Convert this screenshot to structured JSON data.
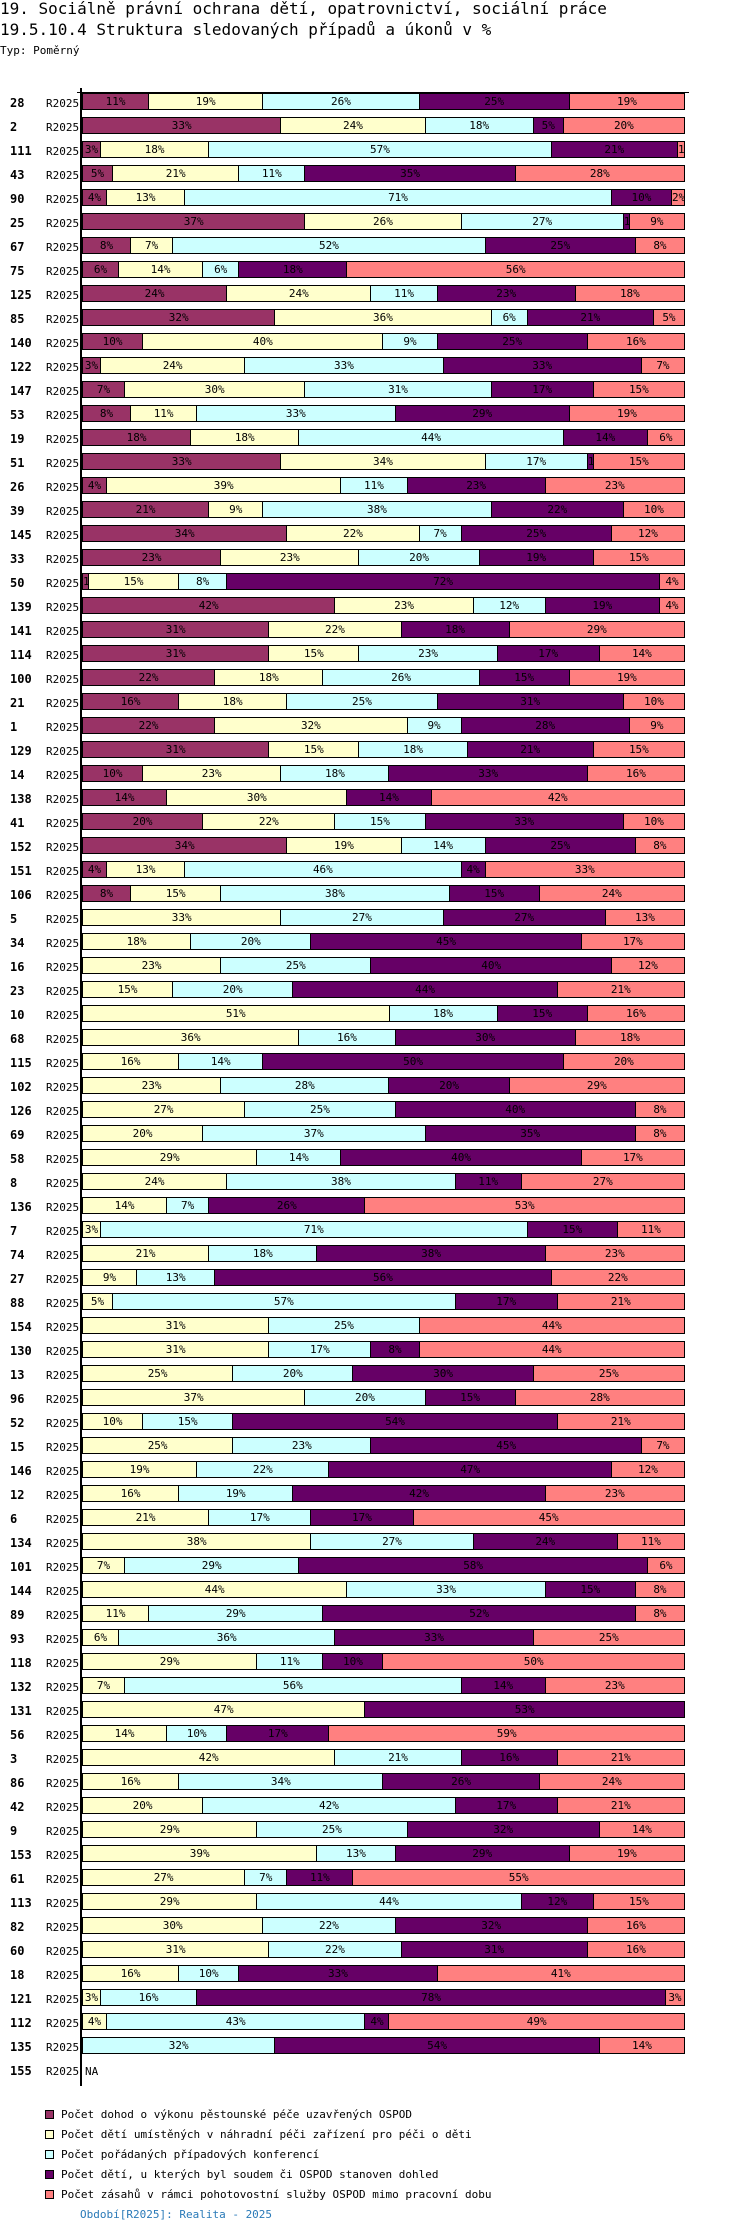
{
  "header": {
    "title": "19. Sociálně právní ochrana dětí, opatrovnictví, sociální práce",
    "subtitle": "19.5.10.4 Struktura sledovaných případů a úkonů v %",
    "type_label": "Typ: Poměrný"
  },
  "footer": "Období[R2025]: Realita - 2025",
  "chart_data": {
    "type": "bar",
    "orientation": "horizontal-stacked-percent",
    "title": "19.5.10.4 Struktura sledovaných případů a úkonů v %",
    "period": "R2025",
    "na_label": "NA",
    "xlim": [
      0,
      100
    ],
    "legend_placement": "bottom",
    "series": [
      {
        "name": "Počet dohod o výkonu pěstounské péče uzavřených OSPOD",
        "color": "#993366"
      },
      {
        "name": "Počet dětí umístěných v náhradní péči zařízení pro péči o děti",
        "color": "#FFFFCC"
      },
      {
        "name": "Počet pořádaných případových konferencí",
        "color": "#CCFFFF"
      },
      {
        "name": "Počet dětí, u kterých byl soudem či OSPOD stanoven dohled",
        "color": "#660066"
      },
      {
        "name": "Počet zásahů v rámci pohotovostní služby OSPOD mimo pracovní dobu",
        "color": "#FF8080"
      }
    ],
    "rows": [
      {
        "id": "28",
        "values": [
          11,
          19,
          26,
          25,
          19
        ]
      },
      {
        "id": "2",
        "values": [
          33,
          24,
          18,
          5,
          20
        ]
      },
      {
        "id": "111",
        "values": [
          3,
          18,
          57,
          21,
          1
        ]
      },
      {
        "id": "43",
        "values": [
          5,
          21,
          11,
          35,
          28
        ]
      },
      {
        "id": "90",
        "values": [
          4,
          13,
          71,
          10,
          2
        ]
      },
      {
        "id": "25",
        "values": [
          37,
          26,
          27,
          1,
          9
        ]
      },
      {
        "id": "67",
        "values": [
          8,
          7,
          52,
          25,
          8
        ]
      },
      {
        "id": "75",
        "values": [
          6,
          14,
          6,
          18,
          56
        ]
      },
      {
        "id": "125",
        "values": [
          24,
          24,
          11,
          23,
          18
        ]
      },
      {
        "id": "85",
        "values": [
          32,
          36,
          6,
          21,
          5
        ]
      },
      {
        "id": "140",
        "values": [
          10,
          40,
          9,
          25,
          16
        ]
      },
      {
        "id": "122",
        "values": [
          3,
          24,
          33,
          33,
          7
        ]
      },
      {
        "id": "147",
        "values": [
          7,
          30,
          31,
          17,
          15
        ]
      },
      {
        "id": "53",
        "values": [
          8,
          11,
          33,
          29,
          19
        ]
      },
      {
        "id": "19",
        "values": [
          18,
          18,
          44,
          14,
          6
        ]
      },
      {
        "id": "51",
        "values": [
          33,
          34,
          17,
          1,
          15
        ]
      },
      {
        "id": "26",
        "values": [
          4,
          39,
          11,
          23,
          23
        ]
      },
      {
        "id": "39",
        "values": [
          21,
          9,
          38,
          22,
          10
        ]
      },
      {
        "id": "145",
        "values": [
          34,
          22,
          7,
          25,
          12
        ]
      },
      {
        "id": "33",
        "values": [
          23,
          23,
          20,
          19,
          15
        ]
      },
      {
        "id": "50",
        "values": [
          1,
          15,
          8,
          72,
          4
        ]
      },
      {
        "id": "139",
        "values": [
          42,
          23,
          12,
          19,
          4
        ]
      },
      {
        "id": "141",
        "values": [
          31,
          22,
          0,
          18,
          29
        ]
      },
      {
        "id": "114",
        "values": [
          31,
          15,
          23,
          17,
          14
        ]
      },
      {
        "id": "100",
        "values": [
          22,
          18,
          26,
          15,
          19
        ]
      },
      {
        "id": "21",
        "values": [
          16,
          18,
          25,
          31,
          10
        ]
      },
      {
        "id": "1",
        "values": [
          22,
          32,
          9,
          28,
          9
        ]
      },
      {
        "id": "129",
        "values": [
          31,
          15,
          18,
          21,
          15
        ]
      },
      {
        "id": "14",
        "values": [
          10,
          23,
          18,
          33,
          16
        ]
      },
      {
        "id": "138",
        "values": [
          14,
          30,
          0,
          14,
          42
        ]
      },
      {
        "id": "41",
        "values": [
          20,
          22,
          15,
          33,
          10
        ]
      },
      {
        "id": "152",
        "values": [
          34,
          19,
          14,
          25,
          8
        ]
      },
      {
        "id": "151",
        "values": [
          4,
          13,
          46,
          4,
          33
        ]
      },
      {
        "id": "106",
        "values": [
          8,
          15,
          38,
          15,
          24
        ]
      },
      {
        "id": "5",
        "values": [
          0,
          33,
          27,
          27,
          13
        ]
      },
      {
        "id": "34",
        "values": [
          0,
          18,
          20,
          45,
          17
        ]
      },
      {
        "id": "16",
        "values": [
          0,
          23,
          25,
          40,
          12
        ]
      },
      {
        "id": "23",
        "values": [
          0,
          15,
          20,
          44,
          21
        ]
      },
      {
        "id": "10",
        "values": [
          0,
          51,
          18,
          15,
          16
        ]
      },
      {
        "id": "68",
        "values": [
          0,
          36,
          16,
          30,
          18
        ]
      },
      {
        "id": "115",
        "values": [
          0,
          16,
          14,
          50,
          20
        ]
      },
      {
        "id": "102",
        "values": [
          0,
          23,
          28,
          20,
          29
        ]
      },
      {
        "id": "126",
        "values": [
          0,
          27,
          25,
          40,
          8
        ]
      },
      {
        "id": "69",
        "values": [
          0,
          20,
          37,
          35,
          8
        ]
      },
      {
        "id": "58",
        "values": [
          0,
          29,
          14,
          40,
          17
        ]
      },
      {
        "id": "8",
        "values": [
          0,
          24,
          38,
          11,
          27
        ]
      },
      {
        "id": "136",
        "values": [
          0,
          14,
          7,
          26,
          53
        ]
      },
      {
        "id": "7",
        "values": [
          0,
          3,
          71,
          15,
          11
        ]
      },
      {
        "id": "74",
        "values": [
          0,
          21,
          18,
          38,
          23
        ]
      },
      {
        "id": "27",
        "values": [
          0,
          9,
          13,
          56,
          22
        ]
      },
      {
        "id": "88",
        "values": [
          0,
          5,
          57,
          17,
          21
        ]
      },
      {
        "id": "154",
        "values": [
          0,
          31,
          25,
          0,
          44
        ]
      },
      {
        "id": "130",
        "values": [
          0,
          31,
          17,
          8,
          44
        ]
      },
      {
        "id": "13",
        "values": [
          0,
          25,
          20,
          30,
          25
        ]
      },
      {
        "id": "96",
        "values": [
          0,
          37,
          20,
          15,
          28
        ]
      },
      {
        "id": "52",
        "values": [
          0,
          10,
          15,
          54,
          21
        ]
      },
      {
        "id": "15",
        "values": [
          0,
          25,
          23,
          45,
          7
        ]
      },
      {
        "id": "146",
        "values": [
          0,
          19,
          22,
          47,
          12
        ]
      },
      {
        "id": "12",
        "values": [
          0,
          16,
          19,
          42,
          23
        ]
      },
      {
        "id": "6",
        "values": [
          0,
          21,
          17,
          17,
          45
        ]
      },
      {
        "id": "134",
        "values": [
          0,
          38,
          27,
          24,
          11
        ]
      },
      {
        "id": "101",
        "values": [
          0,
          7,
          29,
          58,
          6
        ]
      },
      {
        "id": "144",
        "values": [
          0,
          44,
          33,
          15,
          8
        ]
      },
      {
        "id": "89",
        "values": [
          0,
          11,
          29,
          52,
          8
        ]
      },
      {
        "id": "93",
        "values": [
          0,
          6,
          36,
          33,
          25
        ]
      },
      {
        "id": "118",
        "values": [
          0,
          29,
          11,
          10,
          50
        ]
      },
      {
        "id": "132",
        "values": [
          0,
          7,
          56,
          14,
          23
        ]
      },
      {
        "id": "131",
        "values": [
          0,
          47,
          0,
          53,
          0
        ]
      },
      {
        "id": "56",
        "values": [
          0,
          14,
          10,
          17,
          59
        ]
      },
      {
        "id": "3",
        "values": [
          0,
          42,
          21,
          16,
          21
        ]
      },
      {
        "id": "86",
        "values": [
          0,
          16,
          34,
          26,
          24
        ]
      },
      {
        "id": "42",
        "values": [
          0,
          20,
          42,
          17,
          21
        ]
      },
      {
        "id": "9",
        "values": [
          0,
          29,
          25,
          32,
          14
        ]
      },
      {
        "id": "153",
        "values": [
          0,
          39,
          13,
          29,
          19
        ]
      },
      {
        "id": "61",
        "values": [
          0,
          27,
          7,
          11,
          55
        ]
      },
      {
        "id": "113",
        "values": [
          0,
          29,
          44,
          12,
          15
        ]
      },
      {
        "id": "82",
        "values": [
          0,
          30,
          22,
          32,
          16
        ]
      },
      {
        "id": "60",
        "values": [
          0,
          31,
          22,
          31,
          16
        ]
      },
      {
        "id": "18",
        "values": [
          0,
          16,
          10,
          33,
          41
        ]
      },
      {
        "id": "121",
        "values": [
          0,
          3,
          16,
          78,
          3
        ]
      },
      {
        "id": "112",
        "values": [
          0,
          4,
          43,
          4,
          49
        ]
      },
      {
        "id": "135",
        "values": [
          0,
          0,
          32,
          54,
          14
        ]
      },
      {
        "id": "155",
        "values": null
      }
    ]
  }
}
